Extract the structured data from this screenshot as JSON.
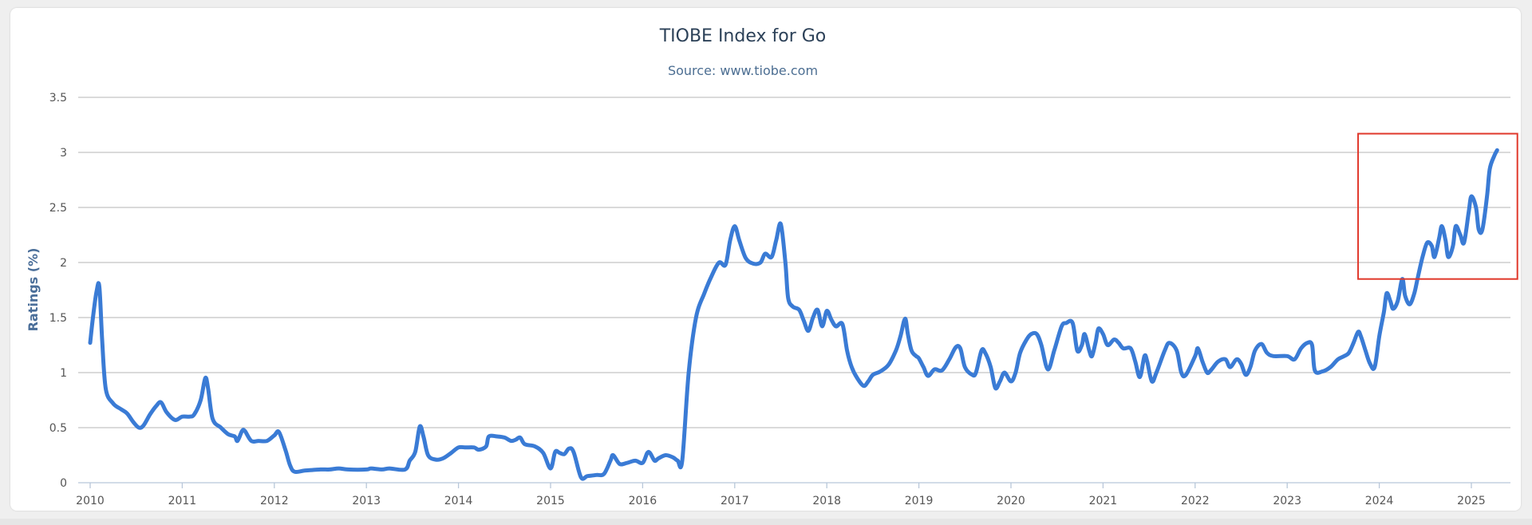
{
  "chart_data": {
    "type": "line",
    "title": "TIOBE Index for Go",
    "subtitle": "Source: www.tiobe.com",
    "xlabel": "",
    "ylabel": "Ratings (%)",
    "xlim": [
      2010,
      2025.5
    ],
    "ylim": [
      0,
      3.5
    ],
    "grid": true,
    "legend": "none",
    "series_color": "#3a7bd5",
    "highlight_color": "#e0382b",
    "highlight_region": {
      "x_range": [
        2023.77,
        2025.5
      ],
      "y_range": [
        1.85,
        3.17
      ]
    },
    "x_ticks": [
      2010,
      2011,
      2012,
      2013,
      2014,
      2015,
      2016,
      2017,
      2018,
      2019,
      2020,
      2021,
      2022,
      2023,
      2024,
      2025
    ],
    "x_tick_labels": [
      "2010",
      "2011",
      "2012",
      "2013",
      "2014",
      "2015",
      "2016",
      "2017",
      "2018",
      "2019",
      "2020",
      "2021",
      "2022",
      "2023",
      "2024",
      "2025"
    ],
    "y_ticks": [
      0,
      0.5,
      1,
      1.5,
      2,
      2.5,
      3,
      3.5
    ],
    "y_tick_labels": [
      "0",
      "0.5",
      "1",
      "1.5",
      "2",
      "2.5",
      "3",
      "3.5"
    ],
    "series": [
      {
        "name": "Go",
        "points": [
          [
            2010.0,
            1.27
          ],
          [
            2010.03,
            1.5
          ],
          [
            2010.07,
            1.74
          ],
          [
            2010.1,
            1.78
          ],
          [
            2010.13,
            1.3
          ],
          [
            2010.17,
            0.85
          ],
          [
            2010.25,
            0.72
          ],
          [
            2010.33,
            0.67
          ],
          [
            2010.4,
            0.63
          ],
          [
            2010.47,
            0.55
          ],
          [
            2010.53,
            0.5
          ],
          [
            2010.58,
            0.52
          ],
          [
            2010.65,
            0.62
          ],
          [
            2010.72,
            0.7
          ],
          [
            2010.77,
            0.73
          ],
          [
            2010.83,
            0.64
          ],
          [
            2010.92,
            0.57
          ],
          [
            2011.0,
            0.6
          ],
          [
            2011.08,
            0.6
          ],
          [
            2011.13,
            0.62
          ],
          [
            2011.2,
            0.75
          ],
          [
            2011.25,
            0.95
          ],
          [
            2011.28,
            0.86
          ],
          [
            2011.33,
            0.58
          ],
          [
            2011.42,
            0.5
          ],
          [
            2011.5,
            0.44
          ],
          [
            2011.57,
            0.42
          ],
          [
            2011.6,
            0.38
          ],
          [
            2011.65,
            0.47
          ],
          [
            2011.68,
            0.47
          ],
          [
            2011.75,
            0.38
          ],
          [
            2011.83,
            0.38
          ],
          [
            2011.92,
            0.38
          ],
          [
            2012.0,
            0.43
          ],
          [
            2012.05,
            0.46
          ],
          [
            2012.12,
            0.3
          ],
          [
            2012.17,
            0.16
          ],
          [
            2012.22,
            0.1
          ],
          [
            2012.33,
            0.11
          ],
          [
            2012.5,
            0.12
          ],
          [
            2012.6,
            0.12
          ],
          [
            2012.7,
            0.13
          ],
          [
            2012.8,
            0.12
          ],
          [
            2013.0,
            0.12
          ],
          [
            2013.05,
            0.13
          ],
          [
            2013.17,
            0.12
          ],
          [
            2013.25,
            0.13
          ],
          [
            2013.42,
            0.12
          ],
          [
            2013.47,
            0.2
          ],
          [
            2013.53,
            0.28
          ],
          [
            2013.58,
            0.51
          ],
          [
            2013.62,
            0.42
          ],
          [
            2013.67,
            0.25
          ],
          [
            2013.75,
            0.21
          ],
          [
            2013.83,
            0.22
          ],
          [
            2013.92,
            0.27
          ],
          [
            2014.0,
            0.32
          ],
          [
            2014.08,
            0.32
          ],
          [
            2014.17,
            0.32
          ],
          [
            2014.22,
            0.3
          ],
          [
            2014.3,
            0.33
          ],
          [
            2014.33,
            0.42
          ],
          [
            2014.42,
            0.42
          ],
          [
            2014.5,
            0.41
          ],
          [
            2014.57,
            0.38
          ],
          [
            2014.62,
            0.39
          ],
          [
            2014.67,
            0.41
          ],
          [
            2014.72,
            0.35
          ],
          [
            2014.83,
            0.33
          ],
          [
            2014.92,
            0.27
          ],
          [
            2015.0,
            0.13
          ],
          [
            2015.05,
            0.28
          ],
          [
            2015.1,
            0.27
          ],
          [
            2015.15,
            0.26
          ],
          [
            2015.2,
            0.31
          ],
          [
            2015.25,
            0.28
          ],
          [
            2015.33,
            0.05
          ],
          [
            2015.4,
            0.06
          ],
          [
            2015.5,
            0.07
          ],
          [
            2015.58,
            0.08
          ],
          [
            2015.65,
            0.2
          ],
          [
            2015.68,
            0.25
          ],
          [
            2015.75,
            0.17
          ],
          [
            2015.83,
            0.18
          ],
          [
            2015.92,
            0.2
          ],
          [
            2016.0,
            0.18
          ],
          [
            2016.05,
            0.27
          ],
          [
            2016.08,
            0.27
          ],
          [
            2016.13,
            0.2
          ],
          [
            2016.17,
            0.22
          ],
          [
            2016.25,
            0.25
          ],
          [
            2016.33,
            0.23
          ],
          [
            2016.38,
            0.2
          ],
          [
            2016.43,
            0.2
          ],
          [
            2016.5,
            1.0
          ],
          [
            2016.58,
            1.5
          ],
          [
            2016.67,
            1.72
          ],
          [
            2016.75,
            1.88
          ],
          [
            2016.83,
            2.0
          ],
          [
            2016.9,
            1.98
          ],
          [
            2016.95,
            2.2
          ],
          [
            2017.0,
            2.33
          ],
          [
            2017.05,
            2.2
          ],
          [
            2017.12,
            2.04
          ],
          [
            2017.2,
            1.99
          ],
          [
            2017.28,
            2.0
          ],
          [
            2017.33,
            2.08
          ],
          [
            2017.4,
            2.05
          ],
          [
            2017.45,
            2.2
          ],
          [
            2017.5,
            2.35
          ],
          [
            2017.55,
            2.0
          ],
          [
            2017.58,
            1.68
          ],
          [
            2017.63,
            1.6
          ],
          [
            2017.7,
            1.57
          ],
          [
            2017.75,
            1.47
          ],
          [
            2017.8,
            1.38
          ],
          [
            2017.85,
            1.5
          ],
          [
            2017.9,
            1.57
          ],
          [
            2017.95,
            1.42
          ],
          [
            2018.0,
            1.56
          ],
          [
            2018.05,
            1.48
          ],
          [
            2018.1,
            1.42
          ],
          [
            2018.17,
            1.44
          ],
          [
            2018.22,
            1.2
          ],
          [
            2018.27,
            1.05
          ],
          [
            2018.33,
            0.95
          ],
          [
            2018.4,
            0.88
          ],
          [
            2018.45,
            0.92
          ],
          [
            2018.5,
            0.98
          ],
          [
            2018.58,
            1.01
          ],
          [
            2018.67,
            1.07
          ],
          [
            2018.75,
            1.2
          ],
          [
            2018.8,
            1.33
          ],
          [
            2018.85,
            1.49
          ],
          [
            2018.88,
            1.35
          ],
          [
            2018.92,
            1.2
          ],
          [
            2018.97,
            1.15
          ],
          [
            2019.0,
            1.13
          ],
          [
            2019.05,
            1.05
          ],
          [
            2019.1,
            0.97
          ],
          [
            2019.17,
            1.03
          ],
          [
            2019.25,
            1.02
          ],
          [
            2019.33,
            1.12
          ],
          [
            2019.4,
            1.23
          ],
          [
            2019.45,
            1.22
          ],
          [
            2019.5,
            1.05
          ],
          [
            2019.58,
            0.98
          ],
          [
            2019.62,
            1.0
          ],
          [
            2019.68,
            1.2
          ],
          [
            2019.72,
            1.18
          ],
          [
            2019.78,
            1.05
          ],
          [
            2019.83,
            0.86
          ],
          [
            2019.88,
            0.92
          ],
          [
            2019.93,
            1.0
          ],
          [
            2020.0,
            0.92
          ],
          [
            2020.05,
            1.0
          ],
          [
            2020.1,
            1.18
          ],
          [
            2020.17,
            1.3
          ],
          [
            2020.22,
            1.35
          ],
          [
            2020.28,
            1.35
          ],
          [
            2020.33,
            1.25
          ],
          [
            2020.4,
            1.03
          ],
          [
            2020.47,
            1.2
          ],
          [
            2020.55,
            1.42
          ],
          [
            2020.6,
            1.45
          ],
          [
            2020.67,
            1.45
          ],
          [
            2020.72,
            1.2
          ],
          [
            2020.77,
            1.25
          ],
          [
            2020.8,
            1.35
          ],
          [
            2020.85,
            1.2
          ],
          [
            2020.88,
            1.15
          ],
          [
            2020.92,
            1.28
          ],
          [
            2020.95,
            1.4
          ],
          [
            2021.0,
            1.35
          ],
          [
            2021.05,
            1.25
          ],
          [
            2021.12,
            1.3
          ],
          [
            2021.17,
            1.27
          ],
          [
            2021.22,
            1.22
          ],
          [
            2021.3,
            1.22
          ],
          [
            2021.35,
            1.1
          ],
          [
            2021.4,
            0.96
          ],
          [
            2021.45,
            1.15
          ],
          [
            2021.48,
            1.1
          ],
          [
            2021.53,
            0.92
          ],
          [
            2021.58,
            1.0
          ],
          [
            2021.67,
            1.2
          ],
          [
            2021.72,
            1.27
          ],
          [
            2021.8,
            1.2
          ],
          [
            2021.85,
            1.0
          ],
          [
            2021.9,
            0.98
          ],
          [
            2022.0,
            1.15
          ],
          [
            2022.03,
            1.22
          ],
          [
            2022.08,
            1.1
          ],
          [
            2022.13,
            1.0
          ],
          [
            2022.17,
            1.02
          ],
          [
            2022.25,
            1.1
          ],
          [
            2022.33,
            1.12
          ],
          [
            2022.38,
            1.05
          ],
          [
            2022.45,
            1.12
          ],
          [
            2022.5,
            1.08
          ],
          [
            2022.55,
            0.98
          ],
          [
            2022.6,
            1.05
          ],
          [
            2022.65,
            1.2
          ],
          [
            2022.72,
            1.26
          ],
          [
            2022.78,
            1.18
          ],
          [
            2022.85,
            1.15
          ],
          [
            2023.0,
            1.15
          ],
          [
            2023.08,
            1.12
          ],
          [
            2023.15,
            1.22
          ],
          [
            2023.22,
            1.27
          ],
          [
            2023.27,
            1.25
          ],
          [
            2023.3,
            1.02
          ],
          [
            2023.38,
            1.01
          ],
          [
            2023.47,
            1.05
          ],
          [
            2023.55,
            1.12
          ],
          [
            2023.62,
            1.15
          ],
          [
            2023.67,
            1.18
          ],
          [
            2023.72,
            1.27
          ],
          [
            2023.77,
            1.37
          ],
          [
            2023.8,
            1.33
          ],
          [
            2023.85,
            1.2
          ],
          [
            2023.9,
            1.08
          ],
          [
            2023.95,
            1.05
          ],
          [
            2024.0,
            1.33
          ],
          [
            2024.05,
            1.55
          ],
          [
            2024.08,
            1.72
          ],
          [
            2024.12,
            1.65
          ],
          [
            2024.15,
            1.58
          ],
          [
            2024.2,
            1.65
          ],
          [
            2024.25,
            1.85
          ],
          [
            2024.28,
            1.7
          ],
          [
            2024.33,
            1.62
          ],
          [
            2024.38,
            1.72
          ],
          [
            2024.42,
            1.87
          ],
          [
            2024.47,
            2.05
          ],
          [
            2024.52,
            2.18
          ],
          [
            2024.57,
            2.15
          ],
          [
            2024.6,
            2.05
          ],
          [
            2024.65,
            2.22
          ],
          [
            2024.68,
            2.33
          ],
          [
            2024.72,
            2.2
          ],
          [
            2024.75,
            2.05
          ],
          [
            2024.8,
            2.15
          ],
          [
            2024.83,
            2.33
          ],
          [
            2024.88,
            2.25
          ],
          [
            2024.92,
            2.18
          ],
          [
            2024.97,
            2.45
          ],
          [
            2025.0,
            2.6
          ],
          [
            2025.05,
            2.5
          ],
          [
            2025.08,
            2.3
          ],
          [
            2025.12,
            2.3
          ],
          [
            2025.17,
            2.6
          ],
          [
            2025.2,
            2.85
          ],
          [
            2025.25,
            2.97
          ],
          [
            2025.28,
            3.02
          ]
        ]
      }
    ]
  }
}
